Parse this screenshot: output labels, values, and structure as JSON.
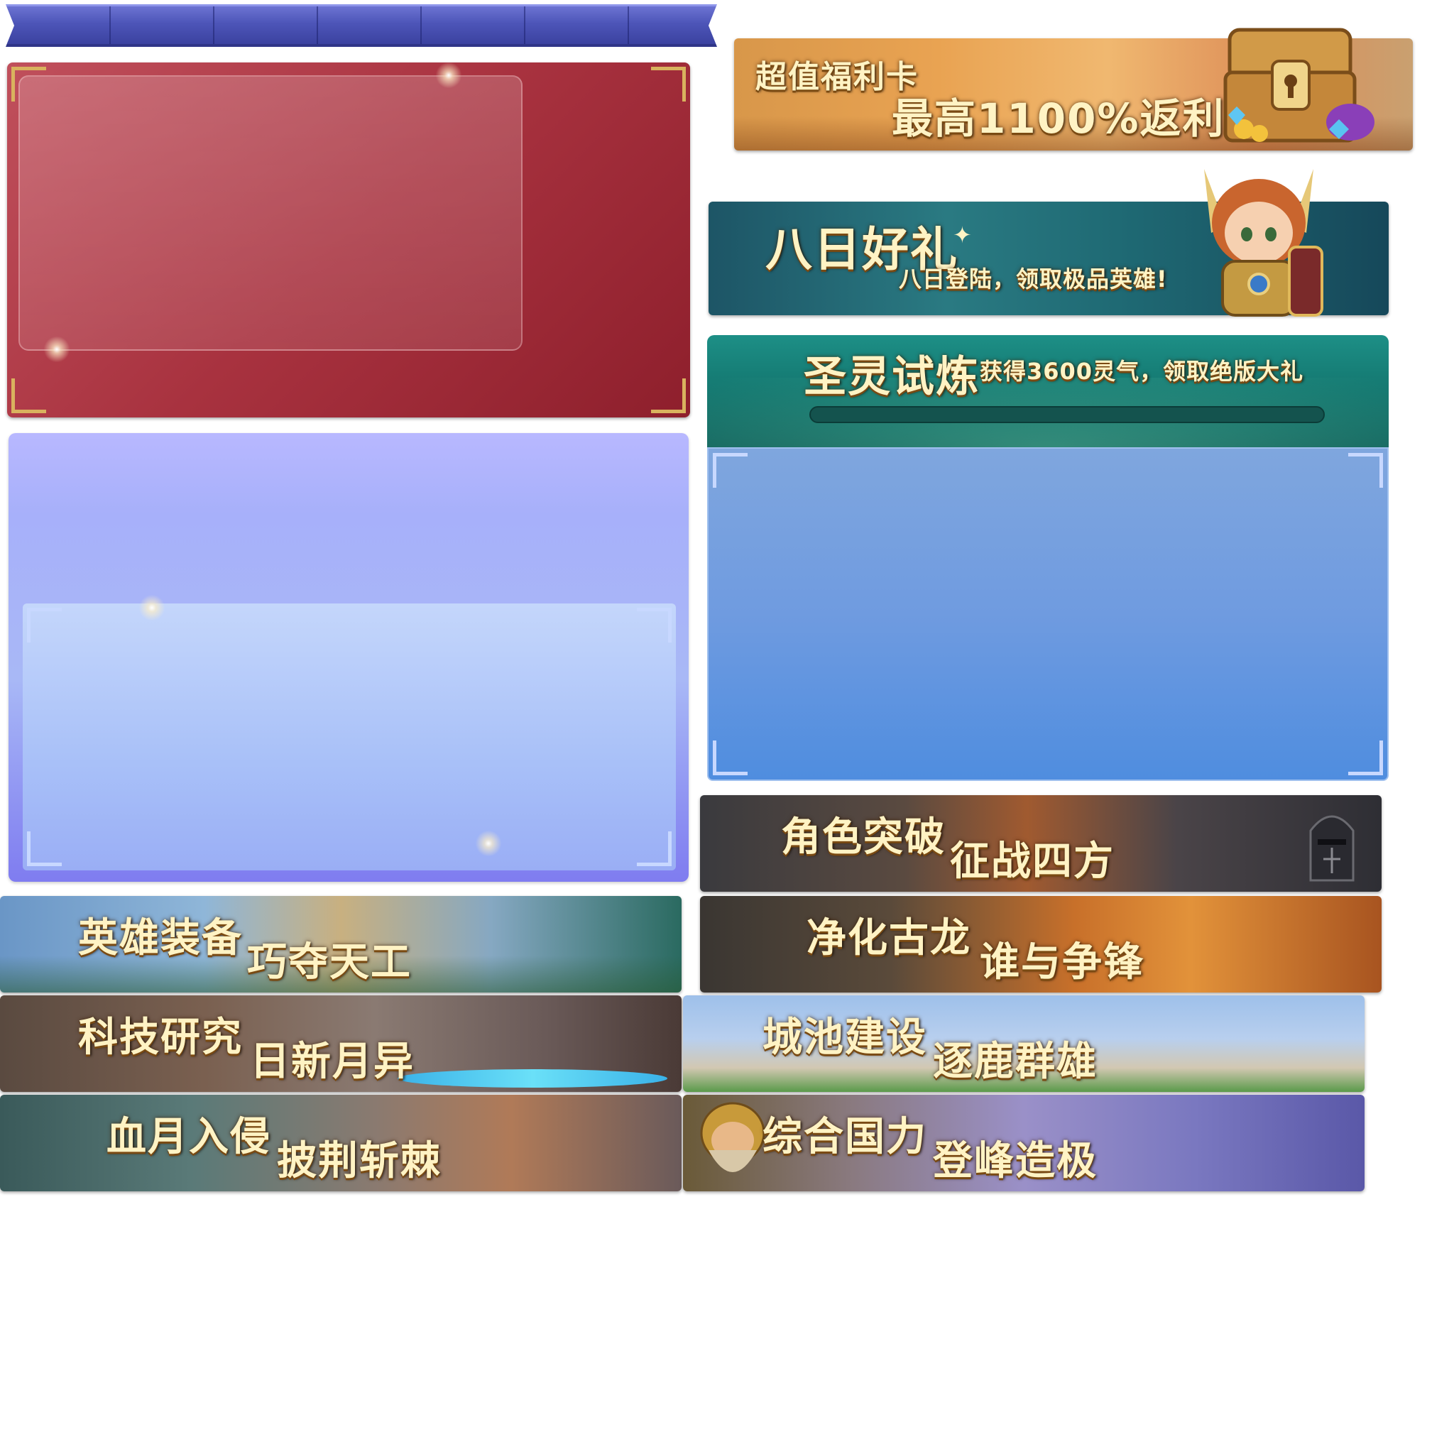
{
  "banners": {
    "super_card": {
      "title": "超值福利卡",
      "subtitle": "最高1100%返利"
    },
    "eight_day": {
      "title": "八日好礼",
      "subtitle": "八日登陆，领取极品英雄!"
    },
    "holy_trial": {
      "title": "圣灵试炼",
      "subtitle": "获得3600灵气，领取绝版大礼"
    },
    "character_break": {
      "title": "角色突破",
      "subtitle": "征战四方"
    },
    "hero_gear": {
      "title": "英雄装备",
      "subtitle": "巧夺天工"
    },
    "purify_dragon": {
      "title": "净化古龙",
      "subtitle": "谁与争锋"
    },
    "tech_research": {
      "title": "科技研究",
      "subtitle": "日新月异"
    },
    "city_build": {
      "title": "城池建设",
      "subtitle": "逐鹿群雄"
    },
    "blood_moon": {
      "title": "血月入侵",
      "subtitle": "披荆斩棘"
    },
    "national_power": {
      "title": "综合国力",
      "subtitle": "登峰造极"
    }
  },
  "icons": {
    "treasure": "treasure-chest-icon",
    "hero": "hero-character-icon",
    "knight": "knight-icon",
    "dwarf": "dwarf-character-icon",
    "sparkle": "sparkle-icon"
  },
  "colors": {
    "ribbon": "#4d55b8",
    "red_panel": "#a8323f",
    "purple_panel": "#a8b8f6",
    "teal_header": "#13766f",
    "blue_body": "#6f9be0",
    "gold_text": "#fff3c4"
  }
}
